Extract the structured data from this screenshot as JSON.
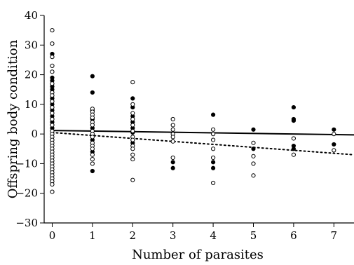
{
  "chart_data": {
    "type": "scatter",
    "xlabel": "Number of parasites",
    "ylabel": "Offspring body condition",
    "xlim": [
      -0.2,
      7.5
    ],
    "ylim": [
      -30,
      40
    ],
    "xticks": [
      0,
      1,
      2,
      3,
      4,
      5,
      6,
      7
    ],
    "yticks": [
      40,
      30,
      20,
      10,
      0,
      -10,
      -20,
      -30
    ],
    "x_tick_labels": [
      "0",
      "1",
      "2",
      "3",
      "4",
      "5",
      "6",
      "7"
    ],
    "y_tick_labels": [
      "40",
      "30",
      "20",
      "10",
      "0",
      "−10",
      "−20",
      "−30"
    ],
    "grid": false,
    "colors": {
      "filled": "#000000",
      "open": "#ffffff",
      "stroke": "#000000"
    },
    "series": [
      {
        "marker": "filled-circle",
        "points": [
          [
            0,
            27
          ],
          [
            0,
            19
          ],
          [
            0,
            18
          ],
          [
            0,
            16
          ],
          [
            0,
            15
          ],
          [
            0,
            12
          ],
          [
            0,
            10
          ],
          [
            0,
            8
          ],
          [
            0,
            6
          ],
          [
            0,
            4
          ],
          [
            0,
            2
          ],
          [
            1,
            19.5
          ],
          [
            1,
            14
          ],
          [
            1,
            8
          ],
          [
            1,
            5
          ],
          [
            1,
            2
          ],
          [
            1,
            -2
          ],
          [
            1,
            -6
          ],
          [
            1,
            -12.5
          ],
          [
            2,
            12
          ],
          [
            2,
            9
          ],
          [
            2,
            6
          ],
          [
            2,
            4
          ],
          [
            2,
            2
          ],
          [
            2,
            0.5
          ],
          [
            2,
            -3
          ],
          [
            3,
            -9.5
          ],
          [
            3,
            -11.5
          ],
          [
            4,
            6.5
          ],
          [
            4,
            -9.5
          ],
          [
            4,
            -11.5
          ],
          [
            5,
            1.5
          ],
          [
            5,
            -5
          ],
          [
            6,
            9
          ],
          [
            6,
            5
          ],
          [
            6,
            4.5
          ],
          [
            6,
            -4
          ],
          [
            6,
            -5
          ],
          [
            7,
            1.5
          ],
          [
            7,
            -3.5
          ]
        ]
      },
      {
        "marker": "open-circle",
        "points": [
          [
            0,
            35
          ],
          [
            0,
            30.5
          ],
          [
            0,
            26
          ],
          [
            0,
            23
          ],
          [
            0,
            21
          ],
          [
            0,
            17
          ],
          [
            0,
            14
          ],
          [
            0,
            13
          ],
          [
            0,
            11
          ],
          [
            0,
            9
          ],
          [
            0,
            7
          ],
          [
            0,
            5
          ],
          [
            0,
            3
          ],
          [
            0,
            1
          ],
          [
            0,
            0
          ],
          [
            0,
            -1
          ],
          [
            0,
            -2
          ],
          [
            0,
            -3
          ],
          [
            0,
            -4
          ],
          [
            0,
            -5
          ],
          [
            0,
            -6
          ],
          [
            0,
            -7
          ],
          [
            0,
            -8
          ],
          [
            0,
            -9
          ],
          [
            0,
            -10
          ],
          [
            0,
            -11
          ],
          [
            0,
            -12
          ],
          [
            0,
            -13
          ],
          [
            0,
            -14
          ],
          [
            0,
            -15
          ],
          [
            0,
            -16
          ],
          [
            0,
            -17
          ],
          [
            0,
            -19.5
          ],
          [
            1,
            8.5
          ],
          [
            1,
            7.5
          ],
          [
            1,
            6.5
          ],
          [
            1,
            5.5
          ],
          [
            1,
            4
          ],
          [
            1,
            3
          ],
          [
            1,
            1
          ],
          [
            1,
            0
          ],
          [
            1,
            -1
          ],
          [
            1,
            -3
          ],
          [
            1,
            -4
          ],
          [
            1,
            -5
          ],
          [
            1,
            -7
          ],
          [
            1,
            -8.5
          ],
          [
            1,
            -10
          ],
          [
            2,
            17.5
          ],
          [
            2,
            10
          ],
          [
            2,
            7
          ],
          [
            2,
            5
          ],
          [
            2,
            3
          ],
          [
            2,
            1
          ],
          [
            2,
            -1
          ],
          [
            2,
            -2
          ],
          [
            2,
            -4
          ],
          [
            2,
            -5
          ],
          [
            2,
            -7
          ],
          [
            2,
            -8.5
          ],
          [
            2,
            -15.5
          ],
          [
            3,
            5
          ],
          [
            3,
            3
          ],
          [
            3,
            1.5
          ],
          [
            3,
            0
          ],
          [
            3,
            -1
          ],
          [
            3,
            -2.5
          ],
          [
            3,
            -8
          ],
          [
            4,
            1.5
          ],
          [
            4,
            0
          ],
          [
            4,
            -2
          ],
          [
            4,
            -5
          ],
          [
            4,
            -8
          ],
          [
            4,
            -16.5
          ],
          [
            5,
            -3
          ],
          [
            5,
            -7.5
          ],
          [
            5,
            -10
          ],
          [
            5,
            -14
          ],
          [
            6,
            -1.5
          ],
          [
            6,
            -7
          ],
          [
            7,
            0
          ],
          [
            7,
            -5.5
          ]
        ]
      }
    ],
    "trend_lines": [
      {
        "style": "solid",
        "points": [
          [
            0,
            1.2
          ],
          [
            7.5,
            -0.3
          ]
        ]
      },
      {
        "style": "dotted",
        "points": [
          [
            0,
            0.5
          ],
          [
            7.5,
            -7
          ]
        ]
      }
    ]
  }
}
